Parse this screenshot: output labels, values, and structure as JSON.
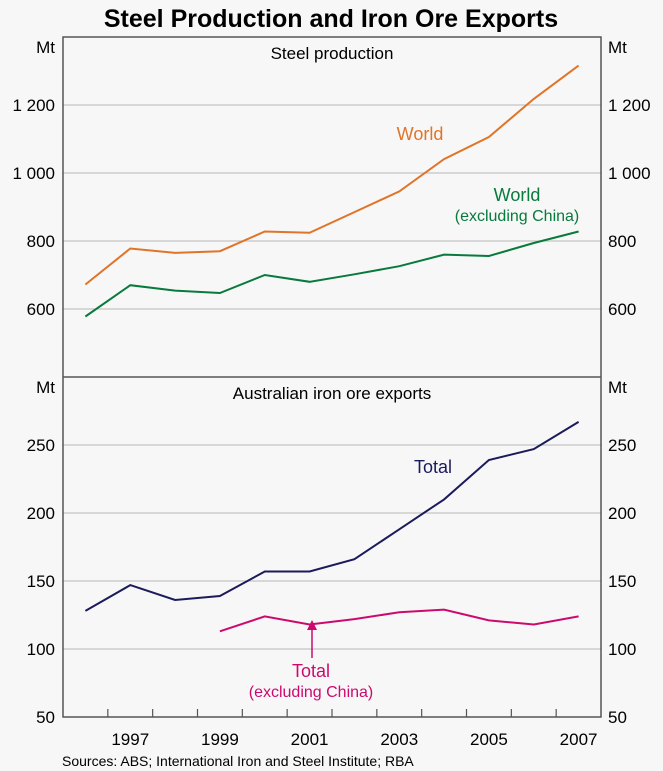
{
  "title": "Steel Production and Iron Ore Exports",
  "source": "Sources: ABS; International Iron and Steel Institute; RBA",
  "colors": {
    "world": "#e07428",
    "world_ex_china": "#087a3c",
    "total": "#1b1b5c",
    "total_ex_china": "#cc0a6e",
    "grid": "#c4c4c4",
    "axis": "#555555"
  },
  "chart_data": [
    {
      "type": "line",
      "title": "Steel production",
      "unit": "Mt",
      "ylim": [
        400,
        1400
      ],
      "yticks": [
        600,
        800,
        1000,
        1200
      ],
      "ytick_labels": [
        "600",
        "800",
        "1 000",
        "1 200"
      ],
      "grid": true,
      "x": [
        1996,
        1997,
        1998,
        1999,
        2000,
        2001,
        2002,
        2003,
        2004,
        2005,
        2006,
        2007
      ],
      "series": [
        {
          "name": "World",
          "color_key": "world",
          "values": [
            672,
            778,
            765,
            770,
            828,
            824,
            885,
            946,
            1041,
            1106,
            1218,
            1316
          ]
        },
        {
          "name": "World",
          "name_line2": "(excluding China)",
          "color_key": "world_ex_china",
          "values": [
            578,
            670,
            654,
            647,
            700,
            680,
            702,
            726,
            760,
            756,
            794,
            828
          ]
        }
      ]
    },
    {
      "type": "line",
      "title": "Australian iron ore exports",
      "unit": "Mt",
      "ylim": [
        50,
        300
      ],
      "yticks": [
        50,
        100,
        150,
        200,
        250
      ],
      "ytick_labels": [
        "50",
        "100",
        "150",
        "200",
        "250"
      ],
      "grid": true,
      "x": [
        1996,
        1997,
        1998,
        1999,
        2000,
        2001,
        2002,
        2003,
        2004,
        2005,
        2006,
        2007
      ],
      "xtick_labels": [
        "1997",
        "1999",
        "2001",
        "2003",
        "2005",
        "2007"
      ],
      "series": [
        {
          "name": "Total",
          "color_key": "total",
          "values": [
            128,
            147,
            136,
            139,
            157,
            157,
            166,
            188,
            210,
            239,
            247,
            267
          ]
        },
        {
          "name": "Total",
          "name_line2": "(excluding China)",
          "color_key": "total_ex_china",
          "values": [
            null,
            null,
            null,
            113,
            124,
            118,
            122,
            127,
            129,
            121,
            118,
            124
          ]
        }
      ]
    }
  ]
}
